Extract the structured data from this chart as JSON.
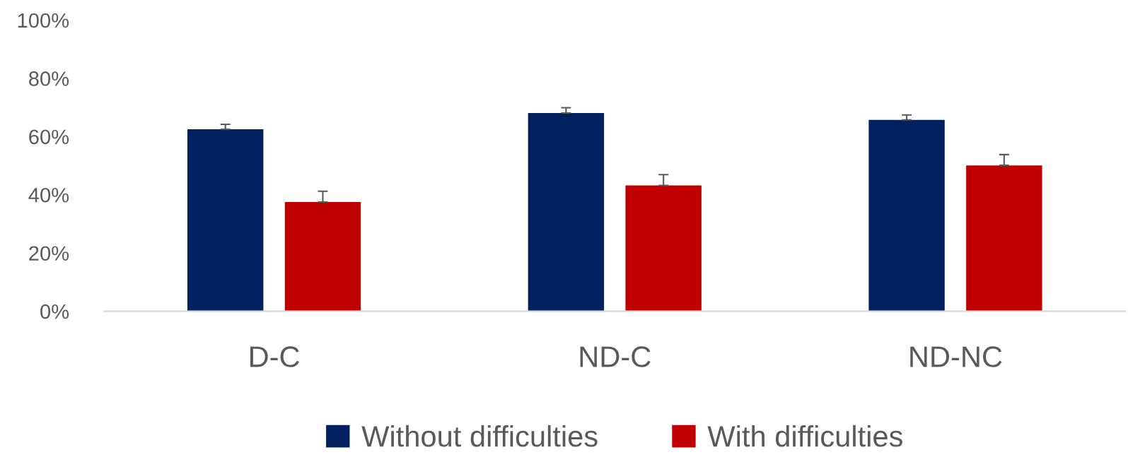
{
  "chart_data": {
    "type": "bar",
    "categories": [
      "D-C",
      "ND-C",
      "ND-NC"
    ],
    "series": [
      {
        "name": "Without difficulties",
        "color": "#002060",
        "values": [
          62.5,
          68.1,
          65.7
        ],
        "errors": [
          [
            62.5,
            64.2
          ],
          [
            68.1,
            69.9
          ],
          [
            65.7,
            67.4
          ]
        ]
      },
      {
        "name": "With difficulties",
        "color": "#c00000",
        "values": [
          37.5,
          43.2,
          50.1
        ],
        "errors": [
          [
            37.5,
            41.2
          ],
          [
            43.2,
            46.9
          ],
          [
            50.1,
            53.8
          ]
        ]
      }
    ],
    "ylim": [
      0,
      100
    ],
    "yticks": [
      {
        "value": 0,
        "label": "0%"
      },
      {
        "value": 20,
        "label": "20%"
      },
      {
        "value": 40,
        "label": "40%"
      },
      {
        "value": 60,
        "label": "60%"
      },
      {
        "value": 80,
        "label": "80%"
      },
      {
        "value": 100,
        "label": "100%"
      }
    ],
    "grid": false,
    "legend": "bottom"
  }
}
